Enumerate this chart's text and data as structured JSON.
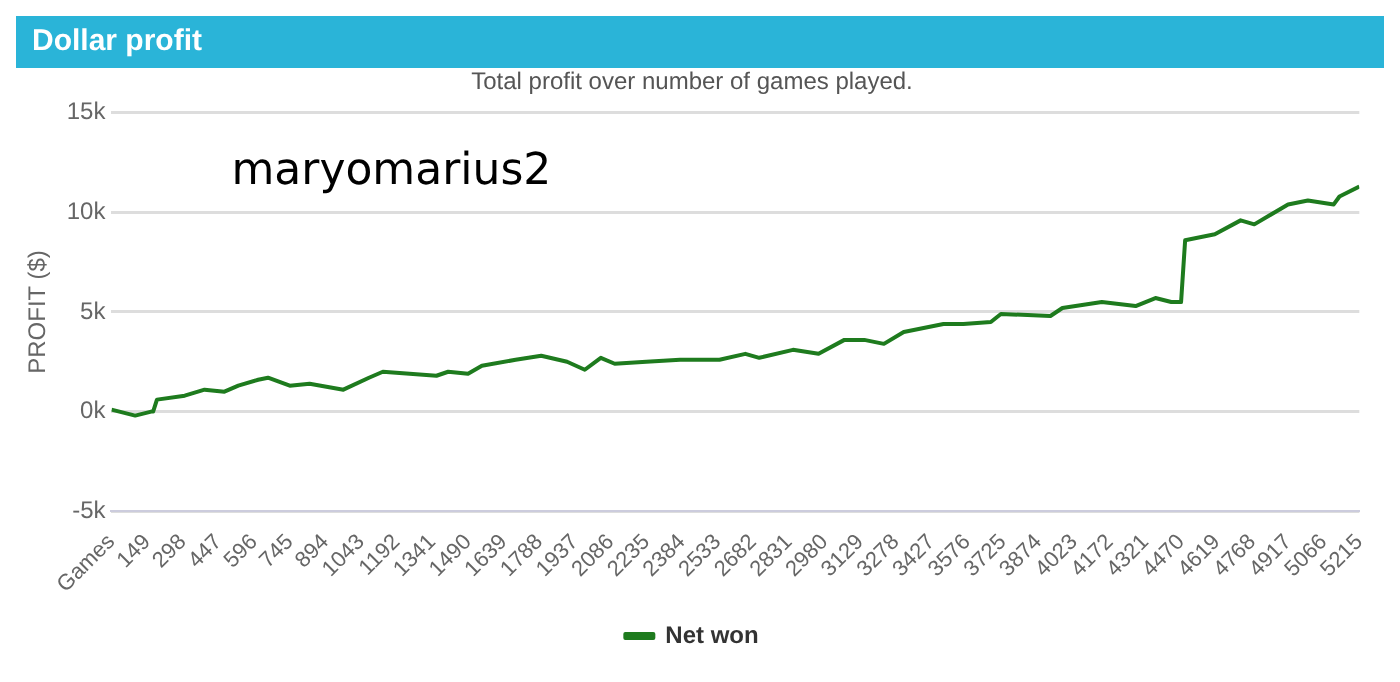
{
  "chart_data": {
    "type": "line",
    "title": "Dollar profit",
    "subtitle": "Total profit over number of games played.",
    "ylabel": "PROFIT ($)",
    "annotations": [
      "maryomarius2"
    ],
    "x": [
      0,
      99,
      166,
      174,
      190,
      306,
      389,
      472,
      530,
      613,
      654,
      745,
      828,
      969,
      1076,
      1134,
      1358,
      1407,
      1490,
      1548,
      1689,
      1796,
      1904,
      1978,
      2045,
      2103,
      2235,
      2376,
      2541,
      2649,
      2707,
      2848,
      2955,
      3063,
      3146,
      3228,
      3311,
      3477,
      3560,
      3675,
      3717,
      3924,
      3974,
      4139,
      4280,
      4363,
      4429,
      4470,
      4487,
      4611,
      4719,
      4776,
      4917,
      5000,
      5108,
      5132,
      5215
    ],
    "series": [
      {
        "name": "Net won",
        "color": "#1e7b1e",
        "values": [
          100,
          -200,
          0,
          0,
          600,
          800,
          1100,
          1000,
          1300,
          1600,
          1700,
          1300,
          1400,
          1100,
          1700,
          2000,
          1800,
          2000,
          1900,
          2300,
          2600,
          2800,
          2500,
          2100,
          2700,
          2400,
          2500,
          2600,
          2600,
          2900,
          2700,
          3100,
          2900,
          3600,
          3600,
          3400,
          4000,
          4400,
          4400,
          4500,
          4900,
          4800,
          5200,
          5500,
          5300,
          5700,
          5500,
          5500,
          8600,
          8900,
          9600,
          9400,
          10400,
          10600,
          10400,
          10800,
          11300
        ]
      }
    ],
    "xlim": [
      0,
      5215
    ],
    "xticks": [
      {
        "value": 0,
        "label": "Games"
      },
      149,
      298,
      447,
      596,
      745,
      894,
      1043,
      1192,
      1341,
      1490,
      1639,
      1788,
      1937,
      2086,
      2235,
      2384,
      2533,
      2682,
      2831,
      2980,
      3129,
      3278,
      3427,
      3576,
      3725,
      3874,
      4023,
      4172,
      4321,
      4470,
      4619,
      4768,
      4917,
      5066,
      5215
    ],
    "ylim": [
      -5000,
      15000
    ],
    "yticks": [
      {
        "value": -5000,
        "label": "-5k"
      },
      {
        "value": 0,
        "label": "0k"
      },
      {
        "value": 5000,
        "label": "5k"
      },
      {
        "value": 10000,
        "label": "10k"
      },
      {
        "value": 15000,
        "label": "15k"
      }
    ],
    "grid": "y",
    "legend": "bottom",
    "marker": "none",
    "line_style": "solid"
  }
}
